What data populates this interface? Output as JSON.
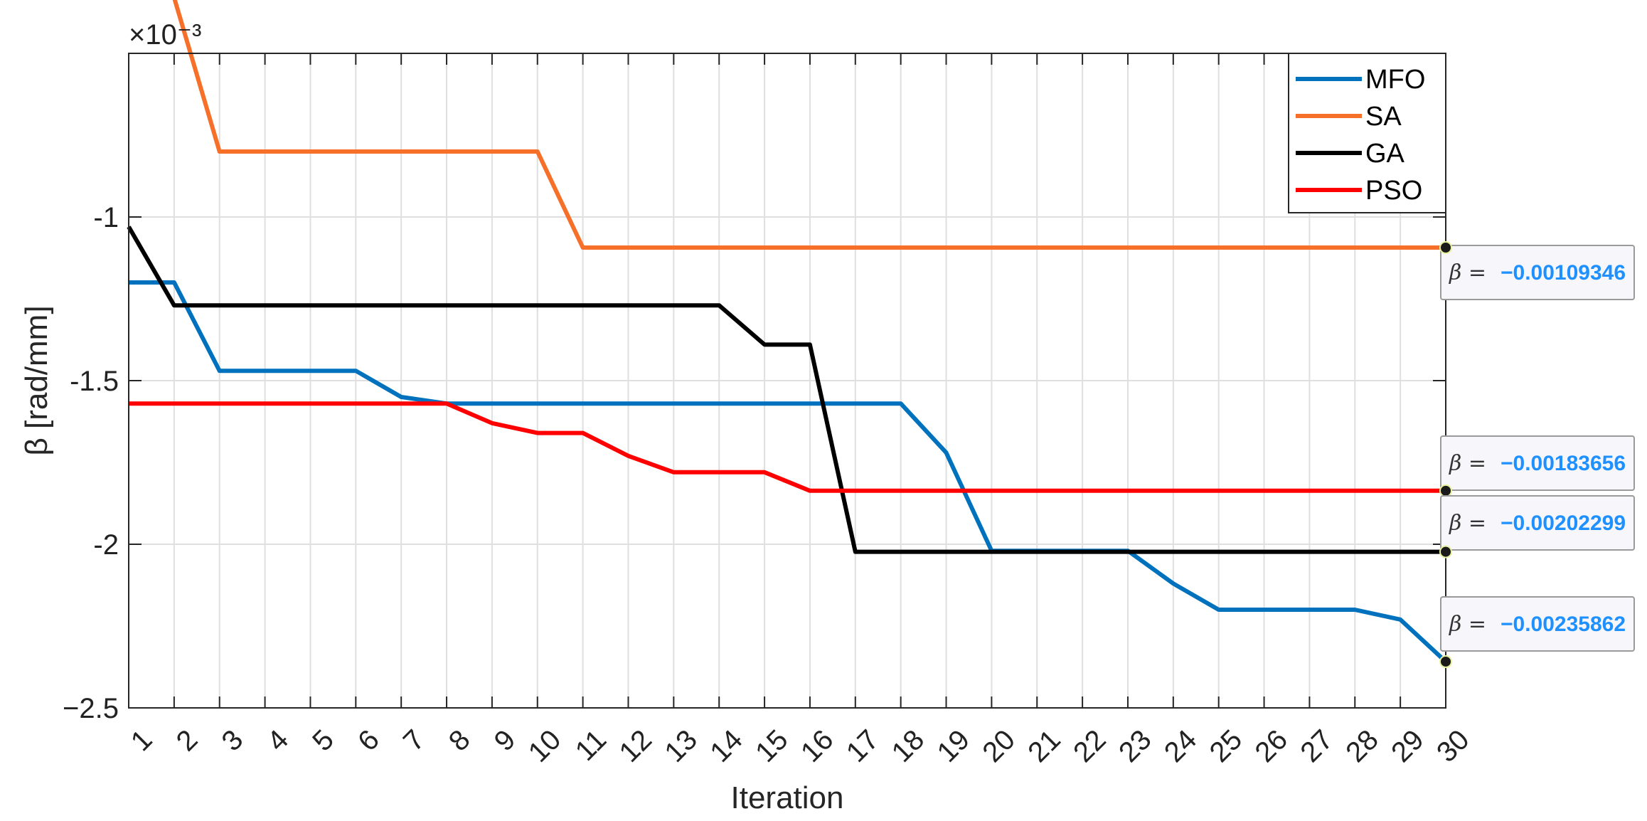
{
  "chart_data": {
    "type": "line",
    "exponent_label": "×10⁻³",
    "xlabel": "Iteration",
    "ylabel": "β [rad/mm]",
    "xlim": [
      1,
      30
    ],
    "ylim": [
      -2.5,
      -0.5
    ],
    "x": [
      1,
      2,
      3,
      4,
      5,
      6,
      7,
      8,
      9,
      10,
      11,
      12,
      13,
      14,
      15,
      16,
      17,
      18,
      19,
      20,
      21,
      22,
      23,
      24,
      25,
      26,
      27,
      28,
      29,
      30
    ],
    "x_ticks": [
      "1",
      "2",
      "3",
      "4",
      "5",
      "6",
      "7",
      "8",
      "9",
      "10",
      "11",
      "12",
      "13",
      "14",
      "15",
      "16",
      "17",
      "18",
      "19",
      "20",
      "21",
      "22",
      "23",
      "24",
      "25",
      "26",
      "27",
      "28",
      "29",
      "30"
    ],
    "y_ticks": [
      -2.5,
      -2,
      -1.5,
      -1
    ],
    "y_tick_labels": [
      "−2.5",
      "-2",
      "-1.5",
      "-1"
    ],
    "grid": true,
    "legend_position": "top-right",
    "series": [
      {
        "name": "MFO",
        "color": "#0072BD",
        "values": [
          -1.2,
          -1.2,
          -1.47,
          -1.47,
          -1.47,
          -1.47,
          -1.55,
          -1.57,
          -1.57,
          -1.57,
          -1.57,
          -1.57,
          -1.57,
          -1.57,
          -1.57,
          -1.57,
          -1.57,
          -1.57,
          -1.72,
          -2.02,
          -2.02,
          -2.02,
          -2.02,
          -2.12,
          -2.2,
          -2.2,
          -2.2,
          -2.2,
          -2.23,
          -2.35862
        ]
      },
      {
        "name": "SA",
        "color": "#F7702A",
        "values": [
          -0.33,
          -0.33,
          -0.8,
          -0.8,
          -0.8,
          -0.8,
          -0.8,
          -0.8,
          -0.8,
          -0.8,
          -1.09346,
          -1.09346,
          -1.09346,
          -1.09346,
          -1.09346,
          -1.09346,
          -1.09346,
          -1.09346,
          -1.09346,
          -1.09346,
          -1.09346,
          -1.09346,
          -1.09346,
          -1.09346,
          -1.09346,
          -1.09346,
          -1.09346,
          -1.09346,
          -1.09346,
          -1.09346
        ]
      },
      {
        "name": "GA",
        "color": "#000000",
        "values": [
          -1.03,
          -1.27,
          -1.27,
          -1.27,
          -1.27,
          -1.27,
          -1.27,
          -1.27,
          -1.27,
          -1.27,
          -1.27,
          -1.27,
          -1.27,
          -1.27,
          -1.39,
          -1.39,
          -2.02299,
          -2.02299,
          -2.02299,
          -2.02299,
          -2.02299,
          -2.02299,
          -2.02299,
          -2.02299,
          -2.02299,
          -2.02299,
          -2.02299,
          -2.02299,
          -2.02299,
          -2.02299
        ]
      },
      {
        "name": "PSO",
        "color": "#FF0000",
        "values": [
          -1.57,
          -1.57,
          -1.57,
          -1.57,
          -1.57,
          -1.57,
          -1.57,
          -1.57,
          -1.63,
          -1.66,
          -1.66,
          -1.73,
          -1.78,
          -1.78,
          -1.78,
          -1.83656,
          -1.83656,
          -1.83656,
          -1.83656,
          -1.83656,
          -1.83656,
          -1.83656,
          -1.83656,
          -1.83656,
          -1.83656,
          -1.83656,
          -1.83656,
          -1.83656,
          -1.83656,
          -1.83656
        ]
      }
    ],
    "datatips": [
      {
        "series": "SA",
        "x": 30,
        "y": -1.09346,
        "lhs": "β =",
        "value": "−0.00109346"
      },
      {
        "series": "PSO",
        "x": 30,
        "y": -1.83656,
        "lhs": "β =",
        "value": "−0.00183656"
      },
      {
        "series": "GA",
        "x": 30,
        "y": -2.02299,
        "lhs": "β =",
        "value": "−0.00202299"
      },
      {
        "series": "MFO",
        "x": 30,
        "y": -2.35862,
        "lhs": "β =",
        "value": "−0.00235862"
      }
    ]
  }
}
